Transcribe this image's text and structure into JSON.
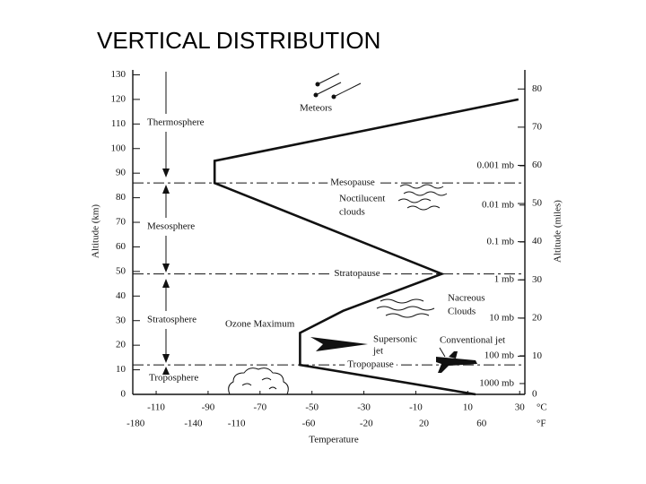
{
  "chart_data": {
    "type": "line",
    "title": "VERTICAL DISTRIBUTION",
    "x_label": "Temperature",
    "y_label": "Altitude (km)",
    "y2_label": "Altitude (miles)",
    "x_unit": "°C",
    "x2_unit": "°F",
    "x": [
      29.5,
      -87.5,
      -87.5,
      0,
      -38,
      -54.6,
      -54.6,
      13
    ],
    "values": [
      120,
      95,
      86,
      49,
      34,
      25,
      12,
      0
    ],
    "color": "#111111",
    "xlim": [
      -119,
      32
    ],
    "xticks": [
      -110,
      -90,
      -70,
      -50,
      -30,
      -10,
      10,
      30
    ],
    "x2lim": [
      -182,
      90
    ],
    "x2ticks": [
      -180,
      -140,
      -110,
      -60,
      -20,
      20,
      60
    ],
    "ylim": [
      0,
      132
    ],
    "yticks": [
      0,
      10,
      20,
      30,
      40,
      50,
      60,
      70,
      80,
      90,
      100,
      110,
      120,
      130
    ],
    "y2lim": [
      0,
      85
    ],
    "y2ticks": [
      0,
      10,
      20,
      30,
      40,
      50,
      60,
      70,
      80
    ],
    "pressure_ticks": [
      {
        "value": 93,
        "label": "0.001 mb"
      },
      {
        "value": 77,
        "label": "0.01 mb"
      },
      {
        "value": 62,
        "label": "0.1 mb"
      },
      {
        "value": 46.6,
        "label": "1 mb"
      },
      {
        "value": 31,
        "label": "10 mb"
      },
      {
        "value": 15.7,
        "label": "100 mb"
      },
      {
        "value": 4.4,
        "label": "1000 mb"
      }
    ],
    "boundaries": [
      {
        "value": 86,
        "label": "Mesopause"
      },
      {
        "value": 49,
        "label": "Stratopause"
      },
      {
        "value": 12,
        "label": "Tropopause"
      }
    ],
    "layers": [
      "Thermosphere",
      "Mesosphere",
      "Stratosphere",
      "Troposphere"
    ],
    "annotations": {
      "meteors": "Meteors",
      "noctilucent": [
        "Noctilucent",
        "clouds"
      ],
      "nacreous": [
        "Nacreous",
        "Clouds"
      ],
      "ozone": "Ozone Maximum",
      "supersonic": [
        "Supersonic",
        "jet"
      ],
      "conventional": "Conventional jet"
    }
  }
}
